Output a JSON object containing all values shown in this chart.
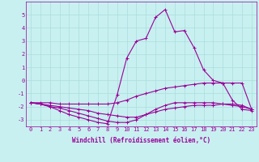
{
  "xlabel": "Windchill (Refroidissement éolien,°C)",
  "bg_color": "#c8f0f0",
  "line_color": "#990099",
  "grid_color": "#aadddd",
  "x_values": [
    0,
    1,
    2,
    3,
    4,
    5,
    6,
    7,
    8,
    9,
    10,
    11,
    12,
    13,
    14,
    15,
    16,
    17,
    18,
    19,
    20,
    21,
    22,
    23
  ],
  "series": [
    [
      -1.7,
      -1.7,
      -1.7,
      -1.8,
      -1.8,
      -1.8,
      -1.8,
      -1.8,
      -1.8,
      -1.7,
      -1.5,
      -1.2,
      -1.0,
      -0.8,
      -0.6,
      -0.5,
      -0.4,
      -0.3,
      -0.2,
      -0.2,
      -0.2,
      -0.2,
      -0.2,
      -2.2
    ],
    [
      -1.7,
      -1.8,
      -1.9,
      -2.0,
      -2.1,
      -2.2,
      -2.3,
      -2.5,
      -2.6,
      -2.7,
      -2.8,
      -2.8,
      -2.6,
      -2.4,
      -2.2,
      -2.1,
      -2.0,
      -1.9,
      -1.9,
      -1.9,
      -1.8,
      -1.8,
      -1.9,
      -2.2
    ],
    [
      -1.7,
      -1.8,
      -2.0,
      -2.1,
      -2.3,
      -2.5,
      -2.7,
      -2.9,
      -3.1,
      -3.2,
      -3.2,
      -3.0,
      -2.6,
      -2.2,
      -1.9,
      -1.7,
      -1.7,
      -1.7,
      -1.7,
      -1.7,
      -1.8,
      -1.9,
      -2.0,
      -2.2
    ],
    [
      -1.7,
      -1.8,
      -2.0,
      -2.3,
      -2.6,
      -2.8,
      -3.0,
      -3.2,
      -3.3,
      -1.1,
      1.7,
      3.0,
      3.2,
      4.8,
      5.4,
      3.7,
      3.8,
      2.5,
      0.8,
      0.0,
      -0.2,
      -1.5,
      -2.2,
      -2.3
    ]
  ],
  "xlim": [
    -0.5,
    23.5
  ],
  "ylim": [
    -3.5,
    6.0
  ],
  "yticks": [
    -3,
    -2,
    -1,
    0,
    1,
    2,
    3,
    4,
    5
  ],
  "xticks": [
    0,
    1,
    2,
    3,
    4,
    5,
    6,
    7,
    8,
    9,
    10,
    11,
    12,
    13,
    14,
    15,
    16,
    17,
    18,
    19,
    20,
    21,
    22,
    23
  ],
  "tick_fontsize": 5,
  "xlabel_fontsize": 5.5,
  "marker": "+",
  "markersize": 3,
  "linewidth": 0.8
}
